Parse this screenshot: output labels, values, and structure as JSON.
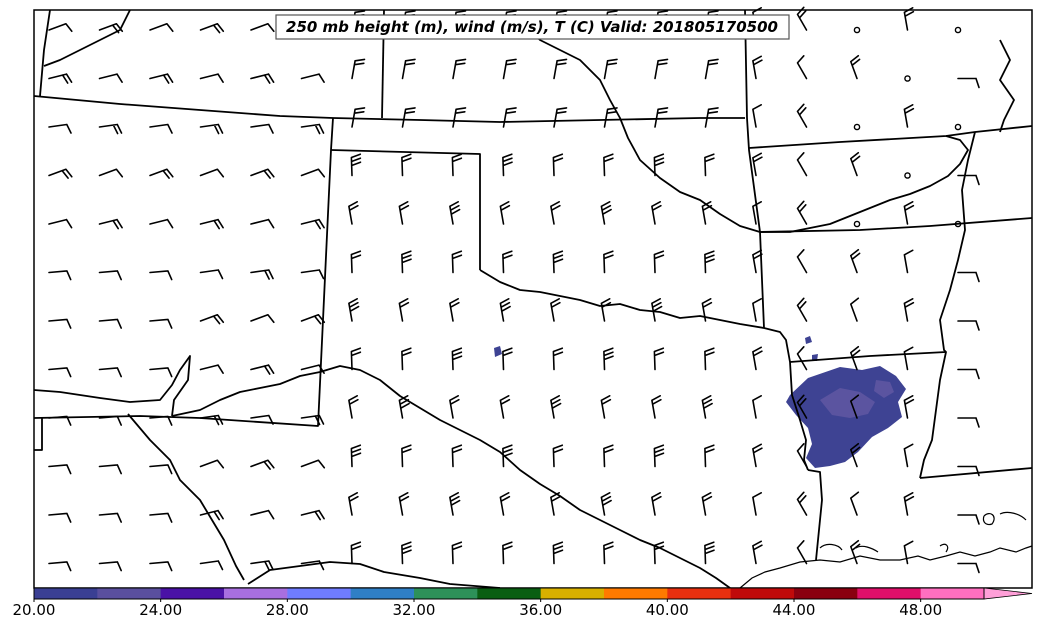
{
  "title": "250 mb height (m), wind (m/s), T (C) Valid: 201805170500",
  "colorbar": {
    "tick_labels": [
      "20.00",
      "24.00",
      "28.00",
      "32.00",
      "36.00",
      "40.00",
      "44.00",
      "48.00"
    ],
    "tick_values": [
      20,
      24,
      28,
      32,
      36,
      40,
      44,
      48
    ],
    "range": [
      20,
      51
    ],
    "extend": "max",
    "colors": [
      "#3a3f93",
      "#5a4f9e",
      "#4a12a6",
      "#a86fe0",
      "#6f7cff",
      "#2f7fc6",
      "#2d9159",
      "#0a5e12",
      "#d8b000",
      "#ff7a00",
      "#e83010",
      "#c00a0a",
      "#8a0010",
      "#e0106a",
      "#ff6fc0",
      "#ff9fd8"
    ]
  },
  "colors": {
    "temperature_shading": "#3e4393",
    "temperature_shading_light": "#5b54a0",
    "boundaries": "#000000"
  }
}
